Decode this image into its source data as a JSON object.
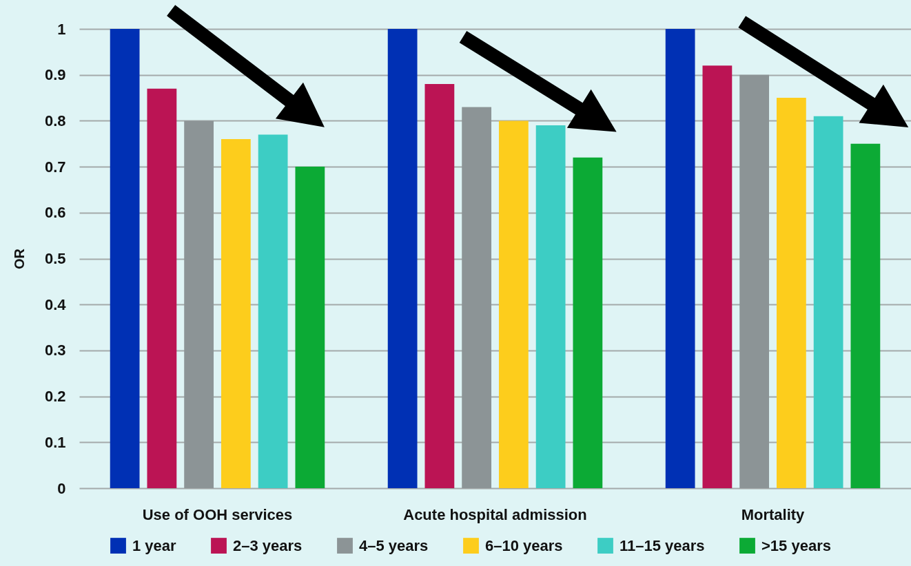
{
  "chart_data": {
    "type": "bar",
    "ylabel": "OR",
    "categories": [
      "Use of OOH services",
      "Acute hospital admission",
      "Mortality"
    ],
    "series": [
      {
        "name": "1 year",
        "color": "#0030b4",
        "values": [
          1,
          1,
          1
        ]
      },
      {
        "name": "2–3 years",
        "color": "#bb1454",
        "values": [
          0.87,
          0.88,
          0.92
        ]
      },
      {
        "name": "4–5 years",
        "color": "#8c9496",
        "values": [
          0.8,
          0.83,
          0.9
        ]
      },
      {
        "name": "6–10 years",
        "color": "#fdcd1c",
        "values": [
          0.76,
          0.8,
          0.85
        ]
      },
      {
        "name": "11–15 years",
        "color": "#3dcdc4",
        "values": [
          0.77,
          0.79,
          0.81
        ]
      },
      {
        "name": ">15 years",
        "color": "#0caa35",
        "values": [
          0.7,
          0.72,
          0.75
        ]
      }
    ],
    "ylim": [
      0,
      1
    ],
    "yticks": [
      0,
      0.1,
      0.2,
      0.3,
      0.4,
      0.5,
      0.6,
      0.7,
      0.8,
      0.9,
      1
    ],
    "grid": "y",
    "legend": "bottom"
  }
}
